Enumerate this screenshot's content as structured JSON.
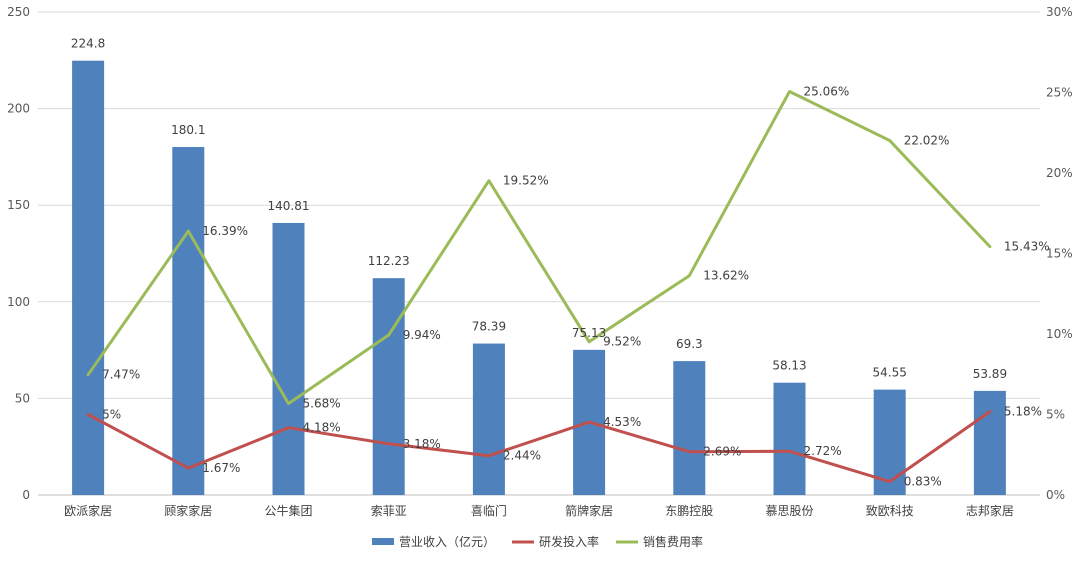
{
  "chart_data": {
    "type": "bar",
    "categories": [
      "欧派家居",
      "顾家家居",
      "公牛集团",
      "索菲亚",
      "喜临门",
      "箭牌家居",
      "东鹏控股",
      "慕思股份",
      "致欧科技",
      "志邦家居"
    ],
    "series": [
      {
        "name": "营业收入（亿元）",
        "type": "bar",
        "axis": "left",
        "color": "#4F81BD",
        "values": [
          224.8,
          180.1,
          140.81,
          112.23,
          78.39,
          75.13,
          69.3,
          58.13,
          54.55,
          53.89
        ],
        "labels": [
          "224.8",
          "180.1",
          "140.81",
          "112.23",
          "78.39",
          "75.13",
          "69.3",
          "58.13",
          "54.55",
          "53.89"
        ]
      },
      {
        "name": "研发投入率",
        "type": "line",
        "axis": "right",
        "color": "#C0504D",
        "values": [
          5,
          1.67,
          4.18,
          3.18,
          2.44,
          4.53,
          2.69,
          2.72,
          0.83,
          5.18
        ],
        "labels": [
          "5%",
          "1.67%",
          "4.18%",
          "3.18%",
          "2.44%",
          "4.53%",
          "2.69%",
          "2.72%",
          "0.83%",
          "5.18%"
        ]
      },
      {
        "name": "销售费用率",
        "type": "line",
        "axis": "right",
        "color": "#9BBB59",
        "values": [
          7.47,
          16.39,
          5.68,
          9.94,
          19.52,
          9.52,
          13.62,
          25.06,
          22.02,
          15.43
        ],
        "labels": [
          "7.47%",
          "16.39%",
          "5.68%",
          "9.94%",
          "19.52%",
          "9.52%",
          "13.62%",
          "25.06%",
          "22.02%",
          "15.43%"
        ]
      }
    ],
    "y_left": {
      "range": [
        0,
        250
      ],
      "ticks": [
        "0",
        "50",
        "100",
        "150",
        "200",
        "250"
      ]
    },
    "y_right": {
      "range": [
        0,
        30
      ],
      "ticks": [
        "0%",
        "5%",
        "10%",
        "15%",
        "20%",
        "25%",
        "30%"
      ]
    },
    "grid": true,
    "legend": "bottom"
  }
}
